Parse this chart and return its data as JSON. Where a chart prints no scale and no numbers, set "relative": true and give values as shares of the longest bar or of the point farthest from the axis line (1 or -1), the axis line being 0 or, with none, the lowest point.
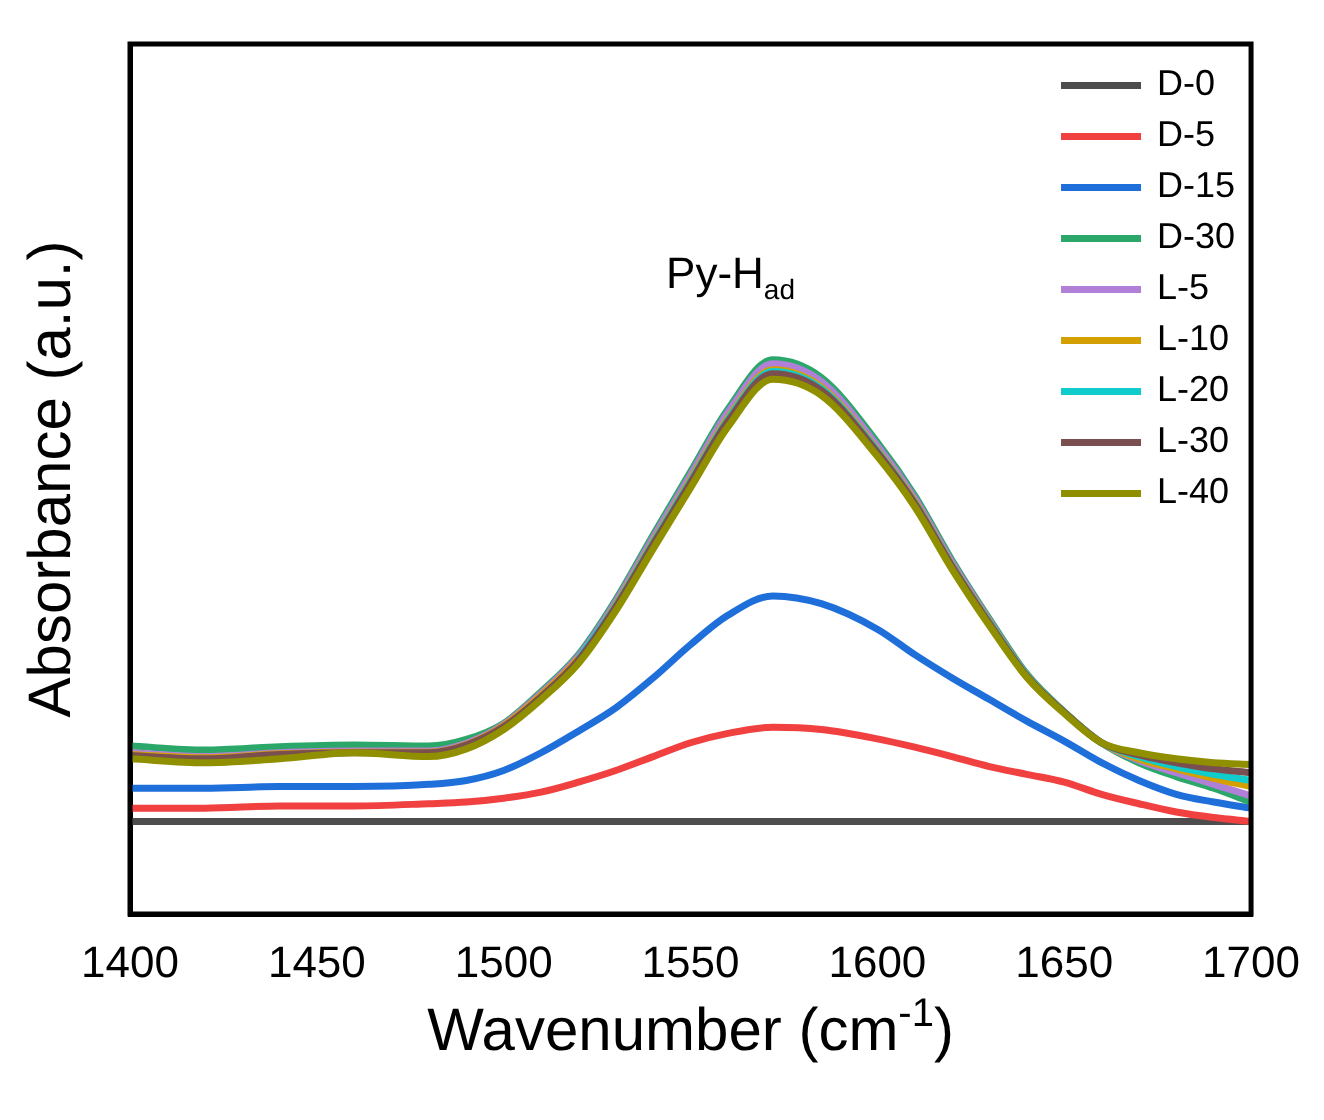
{
  "chart_data": {
    "type": "line",
    "relative": true,
    "xlabel": "Wavenumber (cm$^{-1}$)",
    "ylabel": "Absorbance (a.u.)",
    "x": [
      1400,
      1420,
      1440,
      1460,
      1480,
      1490,
      1500,
      1510,
      1520,
      1530,
      1540,
      1550,
      1560,
      1572,
      1585,
      1600,
      1610,
      1620,
      1630,
      1640,
      1650,
      1660,
      1670,
      1680,
      1690,
      1700
    ],
    "xlim": [
      1400,
      1700
    ],
    "xticks": [
      1400,
      1450,
      1500,
      1550,
      1600,
      1650,
      1700
    ],
    "grid": false,
    "legend": "top right",
    "marker": "none",
    "line_style": "solid",
    "annotations": [
      "Py-H$_{ad}$"
    ],
    "series": [
      {
        "name": "D-0",
        "color": "#4d4d4d",
        "values": [
          0.167,
          0.167,
          0.167,
          0.167,
          0.167,
          0.167,
          0.167,
          0.167,
          0.167,
          0.167,
          0.167,
          0.167,
          0.167,
          0.167,
          0.167,
          0.167,
          0.167,
          0.167,
          0.167,
          0.167,
          0.167,
          0.167,
          0.167,
          0.167,
          0.167,
          0.167
        ]
      },
      {
        "name": "D-5",
        "color": "#f04040",
        "values": [
          0.191,
          0.191,
          0.195,
          0.195,
          0.199,
          0.202,
          0.209,
          0.22,
          0.238,
          0.259,
          0.284,
          0.309,
          0.326,
          0.337,
          0.333,
          0.316,
          0.301,
          0.284,
          0.266,
          0.252,
          0.238,
          0.216,
          0.199,
          0.184,
          0.174,
          0.167
        ]
      },
      {
        "name": "D-15",
        "color": "#1f6fdb",
        "values": [
          0.227,
          0.227,
          0.23,
          0.23,
          0.234,
          0.241,
          0.259,
          0.291,
          0.33,
          0.372,
          0.426,
          0.486,
          0.539,
          0.574,
          0.56,
          0.514,
          0.468,
          0.426,
          0.387,
          0.348,
          0.312,
          0.273,
          0.241,
          0.216,
          0.202,
          0.191
        ]
      },
      {
        "name": "D-30",
        "color": "#2ca76a",
        "values": [
          0.303,
          0.296,
          0.302,
          0.305,
          0.303,
          0.315,
          0.344,
          0.401,
          0.468,
          0.567,
          0.684,
          0.798,
          0.911,
          1.0,
          0.968,
          0.851,
          0.755,
          0.638,
          0.532,
          0.433,
          0.365,
          0.309,
          0.273,
          0.248,
          0.227,
          0.202
        ]
      },
      {
        "name": "L-5",
        "color": "#b07fd8",
        "values": [
          0.291,
          0.284,
          0.291,
          0.294,
          0.294,
          0.308,
          0.342,
          0.398,
          0.465,
          0.563,
          0.679,
          0.792,
          0.905,
          0.993,
          0.961,
          0.845,
          0.75,
          0.634,
          0.529,
          0.431,
          0.364,
          0.309,
          0.277,
          0.255,
          0.234,
          0.213
        ]
      },
      {
        "name": "L-10",
        "color": "#d4a000",
        "values": [
          0.288,
          0.282,
          0.289,
          0.292,
          0.292,
          0.306,
          0.34,
          0.395,
          0.461,
          0.558,
          0.672,
          0.784,
          0.895,
          0.982,
          0.951,
          0.837,
          0.744,
          0.629,
          0.526,
          0.43,
          0.364,
          0.309,
          0.28,
          0.262,
          0.245,
          0.23
        ]
      },
      {
        "name": "L-20",
        "color": "#11cccc",
        "values": [
          null,
          null,
          null,
          null,
          null,
          null,
          null,
          null,
          0.46,
          0.556,
          0.67,
          0.781,
          0.892,
          0.979,
          0.948,
          0.835,
          0.742,
          0.628,
          0.525,
          0.43,
          0.364,
          0.309,
          0.284,
          0.266,
          0.252,
          0.241
        ]
      },
      {
        "name": "L-30",
        "color": "#7a4f4f",
        "values": [
          0.286,
          0.28,
          0.288,
          0.291,
          0.291,
          0.305,
          0.338,
          0.392,
          0.458,
          0.554,
          0.667,
          0.778,
          0.889,
          0.975,
          0.945,
          0.833,
          0.741,
          0.627,
          0.524,
          0.429,
          0.364,
          0.309,
          0.287,
          0.273,
          0.262,
          0.255
        ]
      },
      {
        "name": "L-40",
        "color": "#8f8f00",
        "values": [
          0.28,
          0.273,
          0.28,
          0.291,
          0.284,
          0.298,
          0.333,
          0.387,
          0.452,
          0.547,
          0.659,
          0.769,
          0.879,
          0.965,
          0.936,
          0.826,
          0.735,
          0.622,
          0.52,
          0.427,
          0.362,
          0.309,
          0.291,
          0.28,
          0.273,
          0.27
        ]
      }
    ]
  }
}
